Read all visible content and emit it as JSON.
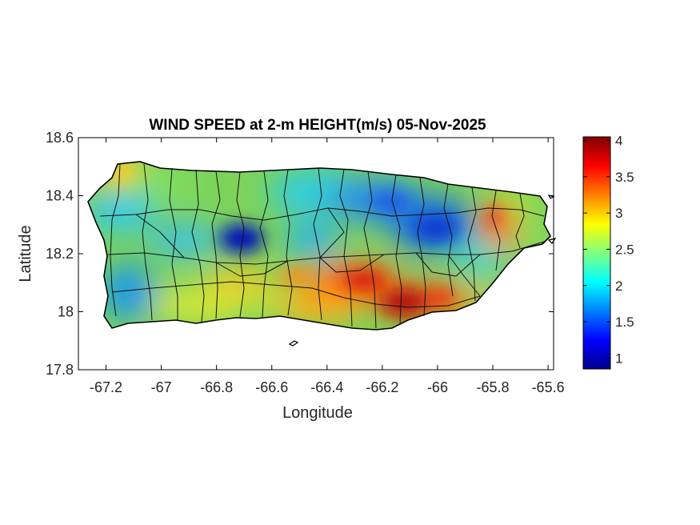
{
  "title": "WIND SPEED at 2-m HEIGHT(m/s) 05-Nov-2025",
  "xlabel": "Longitude",
  "ylabel": "Latitude",
  "x_ticks": [
    "-67.2",
    "-67",
    "-66.8",
    "-66.6",
    "-66.4",
    "-66.2",
    "-66",
    "-65.8",
    "-65.6"
  ],
  "y_ticks": [
    "18.6",
    "18.4",
    "18.2",
    "18",
    "17.8"
  ],
  "colorbar": {
    "ticks": [
      "4",
      "3.5",
      "3",
      "2.5",
      "2",
      "1.5",
      "1"
    ],
    "min": 0.85,
    "max": 4.05,
    "colormap": "jet"
  },
  "chart_data": {
    "type": "heatmap",
    "title": "WIND SPEED at 2-m HEIGHT(m/s) 05-Nov-2025",
    "xlabel": "Longitude",
    "ylabel": "Latitude",
    "xlim": [
      -67.3,
      -65.58
    ],
    "ylim": [
      17.8,
      18.6
    ],
    "x_ticks": [
      -67.2,
      -67,
      -66.8,
      -66.6,
      -66.4,
      -66.2,
      -66,
      -65.8,
      -65.6
    ],
    "y_ticks": [
      17.8,
      18,
      18.2,
      18.4,
      18.6
    ],
    "colorbar_range": [
      0.85,
      4.05
    ],
    "colorbar_ticks": [
      1,
      1.5,
      2,
      2.5,
      3,
      3.5,
      4
    ],
    "grid": false,
    "colormap": "jet",
    "features": [
      {
        "description": "calm minimum",
        "lon": -66.72,
        "lat": 18.25,
        "value": 1.0
      },
      {
        "description": "calm minimum",
        "lon": -66.03,
        "lat": 18.28,
        "value": 1.3
      },
      {
        "description": "calm area",
        "lon": -66.2,
        "lat": 18.37,
        "value": 1.6
      },
      {
        "description": "calm area",
        "lon": -67.15,
        "lat": 18.12,
        "value": 1.8
      },
      {
        "description": "wind maximum",
        "lon": -66.13,
        "lat": 18.03,
        "value": 4.0
      },
      {
        "description": "wind maximum",
        "lon": -66.33,
        "lat": 18.12,
        "value": 3.6
      },
      {
        "description": "wind maximum",
        "lon": -65.8,
        "lat": 18.3,
        "value": 3.4
      },
      {
        "description": "wind maximum",
        "lon": -66.5,
        "lat": 18.0,
        "value": 3.0
      }
    ]
  }
}
